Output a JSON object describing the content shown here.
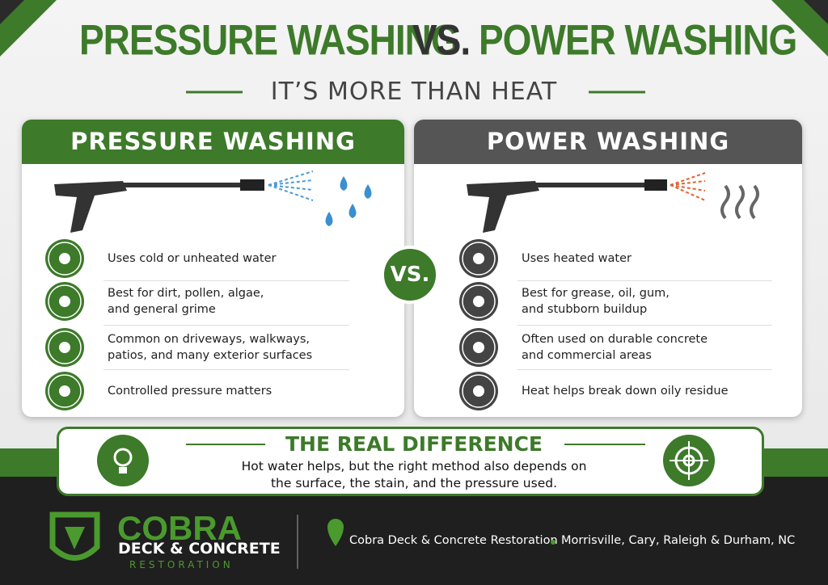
{
  "header": {
    "title_left": "PRESSURE WASHING",
    "vs": "VS.",
    "title_right": "POWER WASHING",
    "subtitle": "IT’S MORE THAN HEAT"
  },
  "panels": [
    {
      "title": "PRESSURE WASHING",
      "items": [
        {
          "lines": [
            "Uses cold or unheated water"
          ]
        },
        {
          "lines": [
            "Best for dirt, pollen, algae,",
            "and general grime"
          ]
        },
        {
          "lines": [
            "Common on driveways, walkways,",
            "patios, and many exterior surfaces"
          ]
        },
        {
          "lines": [
            "Controlled pressure matters"
          ]
        }
      ]
    },
    {
      "title": "POWER WASHING",
      "items": [
        {
          "lines": [
            "Uses heated water"
          ]
        },
        {
          "lines": [
            "Best for grease, oil, gum,",
            "and stubborn buildup"
          ]
        },
        {
          "lines": [
            "Often used on durable concrete",
            "and commercial areas"
          ]
        },
        {
          "lines": [
            "Heat helps break down oily residue"
          ]
        }
      ]
    }
  ],
  "center_badge": "VS.",
  "difference": {
    "title": "THE REAL DIFFERENCE",
    "lines": [
      "Hot water helps, but the right method also depends on",
      "the surface, the stain, and the pressure used."
    ]
  },
  "footer": {
    "brand": "COBRA",
    "brand_sub": "DECK & CONCRETE",
    "brand_tag": "RESTORATION",
    "company": "Cobra Deck & Concrete Restoration",
    "locations": "Morrisville, Cary, Raleigh & Durham, NC"
  }
}
